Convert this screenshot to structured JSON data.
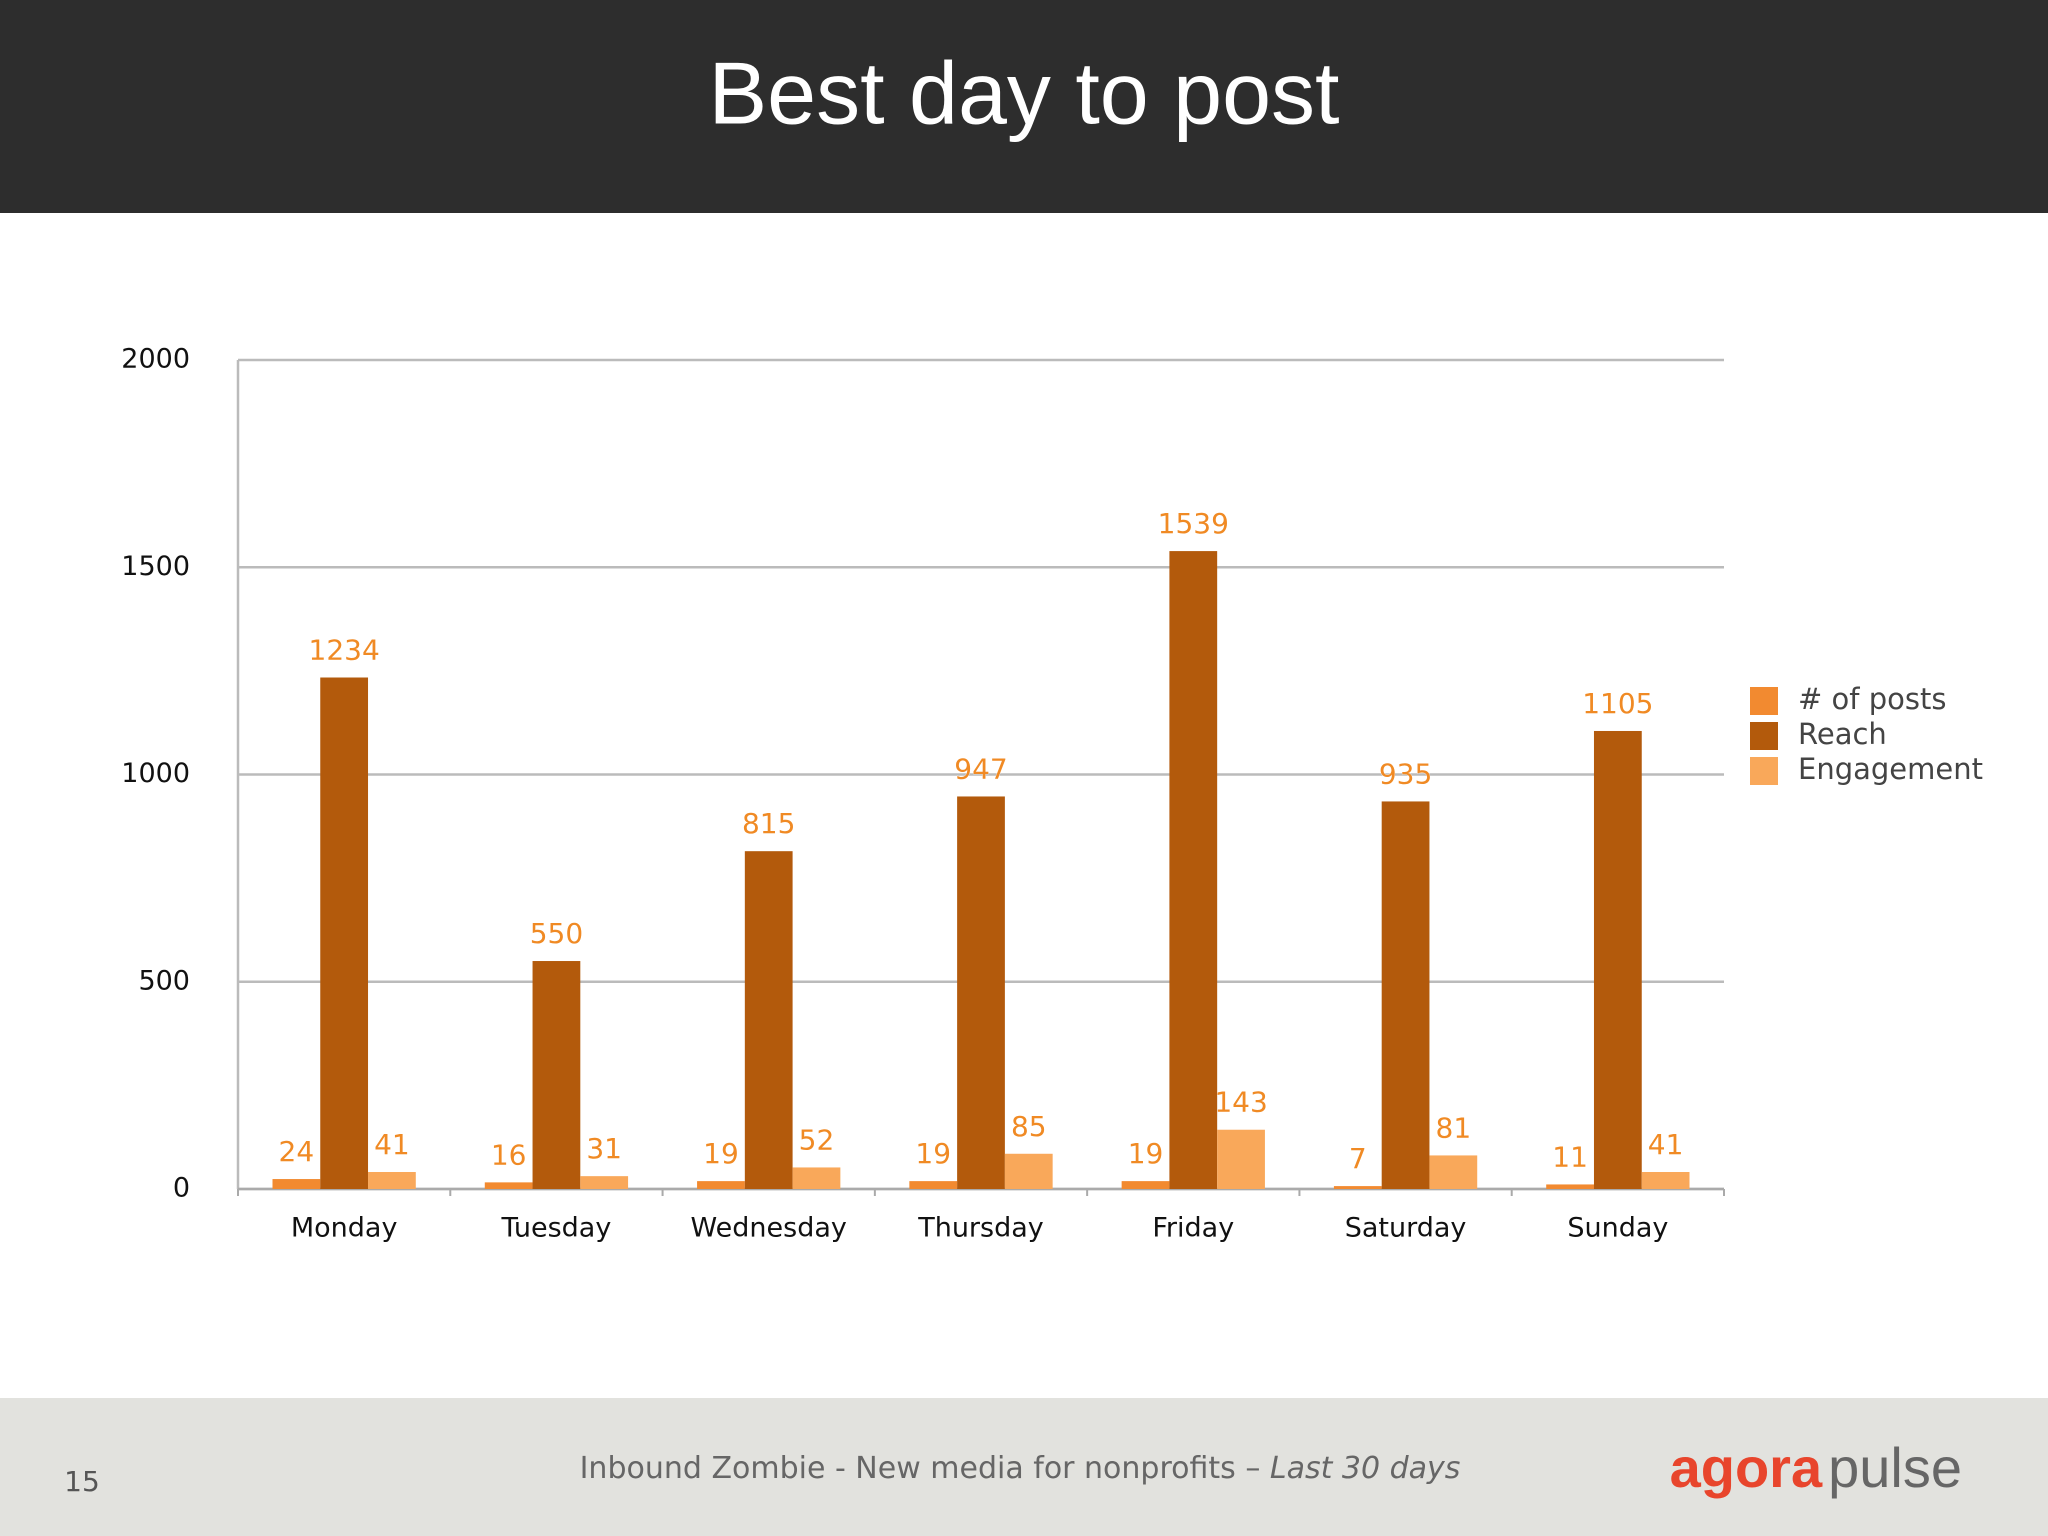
{
  "chart_data": {
    "type": "bar",
    "title": "Best day to post",
    "categories": [
      "Monday",
      "Tuesday",
      "Wednesday",
      "Thursday",
      "Friday",
      "Saturday",
      "Sunday"
    ],
    "series": [
      {
        "name": "# of posts",
        "color": "#f28a30",
        "values": [
          24,
          16,
          19,
          19,
          19,
          7,
          11
        ]
      },
      {
        "name": "Reach",
        "color": "#b35a0c",
        "values": [
          1234,
          550,
          815,
          947,
          1539,
          935,
          1105
        ]
      },
      {
        "name": "Engagement",
        "color": "#f9a85a",
        "values": [
          41,
          31,
          52,
          85,
          143,
          81,
          41
        ]
      }
    ],
    "ylim": [
      0,
      2000
    ],
    "yticks": [
      0,
      500,
      1000,
      1500,
      2000
    ],
    "grid": true,
    "legend": "right"
  },
  "footer": {
    "page_number": "15",
    "text": "Inbound Zombie - New media for nonprofits – ",
    "text_italic": "Last 30 days"
  },
  "logo": {
    "part1": "agora",
    "part2": "pulse"
  }
}
